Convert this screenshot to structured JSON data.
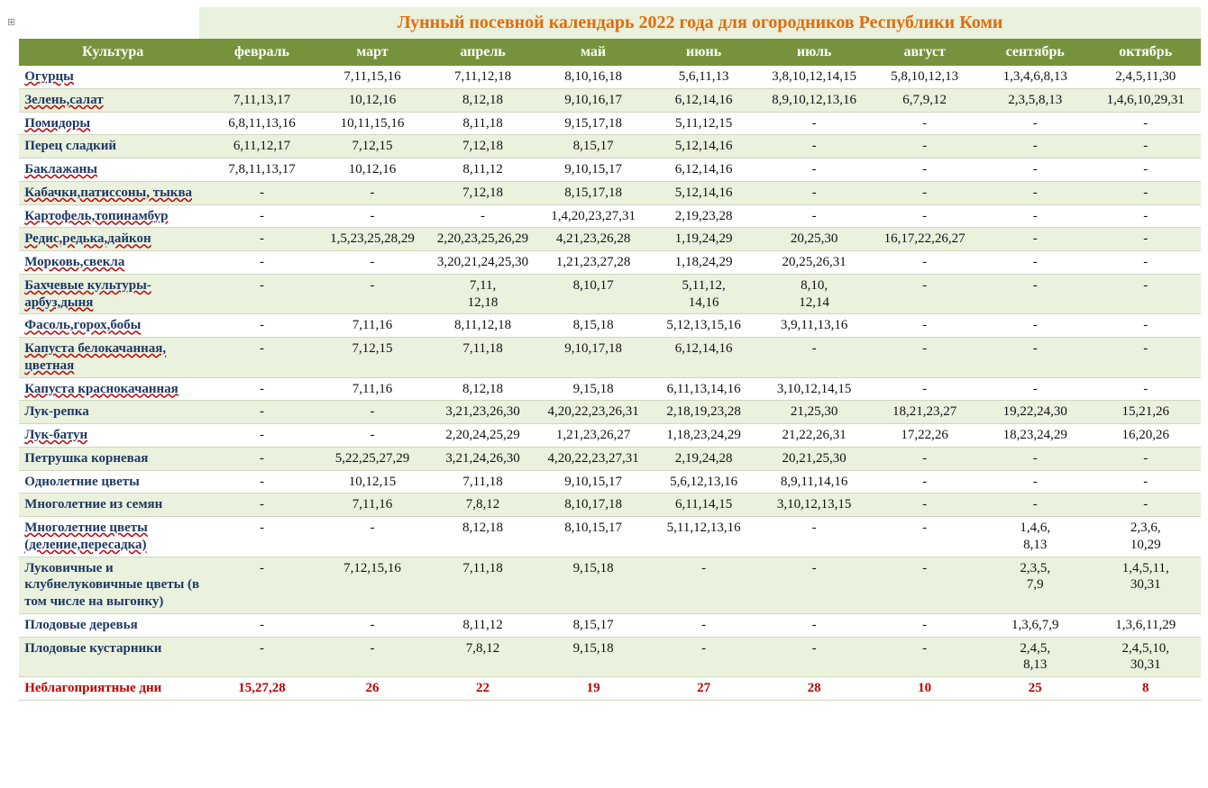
{
  "title": "Лунный посевной календарь 2022 года для огородников Республики Коми",
  "anchor_symbol": "⊞",
  "colors": {
    "header_bg": "#76923c",
    "header_text": "#ffffff",
    "alt_row_bg": "#eaf1dd",
    "title_bg": "#eaf1dd",
    "title_text": "#e36c09",
    "culture_text": "#1f3864",
    "bad_text": "#c00000",
    "border": "#d0d7bd",
    "body_bg": "#ffffff"
  },
  "typography": {
    "title_fontsize": 20,
    "header_fontsize": 16,
    "cell_fontsize": 15,
    "font_family": "Times New Roman, serif"
  },
  "columns": [
    "Культура",
    "февраль",
    "март",
    "апрель",
    "май",
    "июнь",
    "июль",
    "август",
    "сентябрь",
    "октябрь"
  ],
  "column_widths": [
    "200px",
    "",
    "",
    "",
    "",
    "",
    "",
    "",
    "",
    ""
  ],
  "rows": [
    {
      "alt": false,
      "underline": true,
      "cells": [
        "Огурцы",
        "",
        "7,11,15,16",
        "7,11,12,18",
        "8,10,16,18",
        "5,6,11,13",
        "3,8,10,12,14,15",
        "5,8,10,12,13",
        "1,3,4,6,8,13",
        "2,4,5,11,30"
      ]
    },
    {
      "alt": true,
      "underline": true,
      "cells": [
        "Зелень,салат",
        "7,11,13,17",
        "10,12,16",
        "8,12,18",
        "9,10,16,17",
        "6,12,14,16",
        "8,9,10,12,13,16",
        "6,7,9,12",
        "2,3,5,8,13",
        "1,4,6,10,29,31"
      ]
    },
    {
      "alt": false,
      "underline": true,
      "cells": [
        "Помидоры",
        "6,8,11,13,16",
        "10,11,15,16",
        "8,11,18",
        "9,15,17,18",
        "5,11,12,15",
        "-",
        "-",
        "-",
        "-"
      ]
    },
    {
      "alt": true,
      "underline": false,
      "cells": [
        "Перец сладкий",
        "6,11,12,17",
        "7,12,15",
        "7,12,18",
        "8,15,17",
        "5,12,14,16",
        "-",
        "-",
        "-",
        "-"
      ]
    },
    {
      "alt": false,
      "underline": true,
      "cells": [
        "Баклажаны",
        "7,8,11,13,17",
        "10,12,16",
        "8,11,12",
        "9,10,15,17",
        "6,12,14,16",
        "-",
        "-",
        "-",
        "-"
      ]
    },
    {
      "alt": true,
      "underline": true,
      "cells": [
        "Кабачки,патиссоны, тыква",
        "-",
        "-",
        "7,12,18",
        "8,15,17,18",
        "5,12,14,16",
        "-",
        "-",
        "-",
        "-"
      ]
    },
    {
      "alt": false,
      "underline": true,
      "cells": [
        "Картофель,топинамбур",
        "-",
        "-",
        "-",
        "1,4,20,23,27,31",
        "2,19,23,28",
        "-",
        "-",
        "-",
        "-"
      ]
    },
    {
      "alt": true,
      "underline": true,
      "cells": [
        "Редис,редька,дайкон",
        "-",
        "1,5,23,25,28,29",
        "2,20,23,25,26,29",
        "4,21,23,26,28",
        "1,19,24,29",
        "20,25,30",
        "16,17,22,26,27",
        "-",
        "-"
      ]
    },
    {
      "alt": false,
      "underline": true,
      "cells": [
        "Морковь,свекла",
        "-",
        "-",
        "3,20,21,24,25,30",
        "1,21,23,27,28",
        "1,18,24,29",
        "20,25,26,31",
        "-",
        "-",
        "-"
      ]
    },
    {
      "alt": true,
      "underline": true,
      "cells": [
        "Бахчевые культуры-арбуз,дыня",
        "-",
        "-",
        "7,11, 12,18",
        "8,10,17",
        "5,11,12, 14,16",
        "8,10, 12,14",
        "-",
        "-",
        "-"
      ]
    },
    {
      "alt": false,
      "underline": true,
      "cells": [
        "Фасоль,горох,бобы",
        "-",
        "7,11,16",
        "8,11,12,18",
        "8,15,18",
        "5,12,13,15,16",
        "3,9,11,13,16",
        "-",
        "-",
        "-"
      ]
    },
    {
      "alt": true,
      "underline": true,
      "cells": [
        "Капуста белокачанная, цветная",
        "-",
        "7,12,15",
        "7,11,18",
        "9,10,17,18",
        "6,12,14,16",
        "-",
        "-",
        "-",
        "-"
      ]
    },
    {
      "alt": false,
      "underline": true,
      "cells": [
        "Капуста краснокачанная",
        "-",
        "7,11,16",
        "8,12,18",
        "9,15,18",
        "6,11,13,14,16",
        "3,10,12,14,15",
        "-",
        "-",
        "-"
      ]
    },
    {
      "alt": true,
      "underline": false,
      "cells": [
        "Лук-репка",
        "-",
        "-",
        "3,21,23,26,30",
        "4,20,22,23,26,31",
        "2,18,19,23,28",
        "21,25,30",
        "18,21,23,27",
        "19,22,24,30",
        "15,21,26"
      ]
    },
    {
      "alt": false,
      "underline": true,
      "cells": [
        "Лук-батун",
        "-",
        "-",
        "2,20,24,25,29",
        "1,21,23,26,27",
        "1,18,23,24,29",
        "21,22,26,31",
        "17,22,26",
        "18,23,24,29",
        "16,20,26"
      ]
    },
    {
      "alt": true,
      "underline": false,
      "cells": [
        "Петрушка корневая",
        "-",
        "5,22,25,27,29",
        "3,21,24,26,30",
        "4,20,22,23,27,31",
        "2,19,24,28",
        "20,21,25,30",
        "-",
        "-",
        "-"
      ]
    },
    {
      "alt": false,
      "underline": false,
      "cells": [
        "Однолетние цветы",
        "-",
        "10,12,15",
        "7,11,18",
        "9,10,15,17",
        "5,6,12,13,16",
        "8,9,11,14,16",
        "-",
        "-",
        "-"
      ]
    },
    {
      "alt": true,
      "underline": false,
      "cells": [
        "Многолетние  из семян",
        "-",
        "7,11,16",
        "7,8,12",
        "8,10,17,18",
        "6,11,14,15",
        "3,10,12,13,15",
        "-",
        "-",
        "-"
      ]
    },
    {
      "alt": false,
      "underline": true,
      "cells": [
        "Многолетние цветы (деление,пересадка)",
        "-",
        "-",
        "8,12,18",
        "8,10,15,17",
        "5,11,12,13,16",
        "-",
        "-",
        "1,4,6, 8,13",
        "2,3,6, 10,29"
      ]
    },
    {
      "alt": true,
      "underline": false,
      "cells": [
        "Луковичные и клубнелуковичные цветы (в том числе на выгонку)",
        "-",
        "7,12,15,16",
        "7,11,18",
        "9,15,18",
        "-",
        "-",
        "-",
        "2,3,5, 7,9",
        "1,4,5,11, 30,31"
      ]
    },
    {
      "alt": false,
      "underline": false,
      "cells": [
        "Плодовые деревья",
        "-",
        "-",
        "8,11,12",
        "8,15,17",
        "-",
        "-",
        "-",
        "1,3,6,7,9",
        "1,3,6,11,29"
      ]
    },
    {
      "alt": true,
      "underline": false,
      "cells": [
        "Плодовые кустарники",
        "-",
        "-",
        "7,8,12",
        "9,15,18",
        "-",
        "-",
        "-",
        "2,4,5, 8,13",
        "2,4,5,10, 30,31"
      ]
    },
    {
      "alt": false,
      "underline": false,
      "bad": true,
      "cells": [
        "Неблагоприятные дни",
        "15,27,28",
        "26",
        "22",
        "19",
        "27",
        "28",
        "10",
        "25",
        "8"
      ]
    }
  ]
}
